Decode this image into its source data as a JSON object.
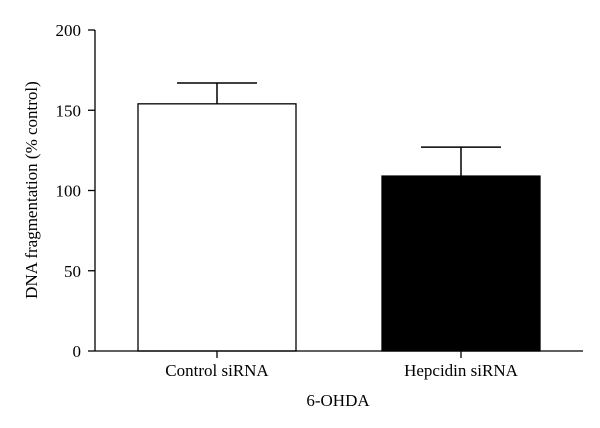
{
  "chart_data": {
    "type": "bar",
    "title": "",
    "xlabel": "6-OHDA",
    "ylabel": "DNA fragmentation (% control)",
    "ylim": [
      0,
      200
    ],
    "yticks": [
      0,
      50,
      100,
      150,
      200
    ],
    "categories": [
      "Control siRNA",
      "Hepcidin siRNA"
    ],
    "values": [
      154,
      109
    ],
    "errors": [
      13,
      18
    ],
    "bar_colors": [
      "#ffffff",
      "#000000"
    ],
    "grid": false,
    "legend": "none"
  }
}
